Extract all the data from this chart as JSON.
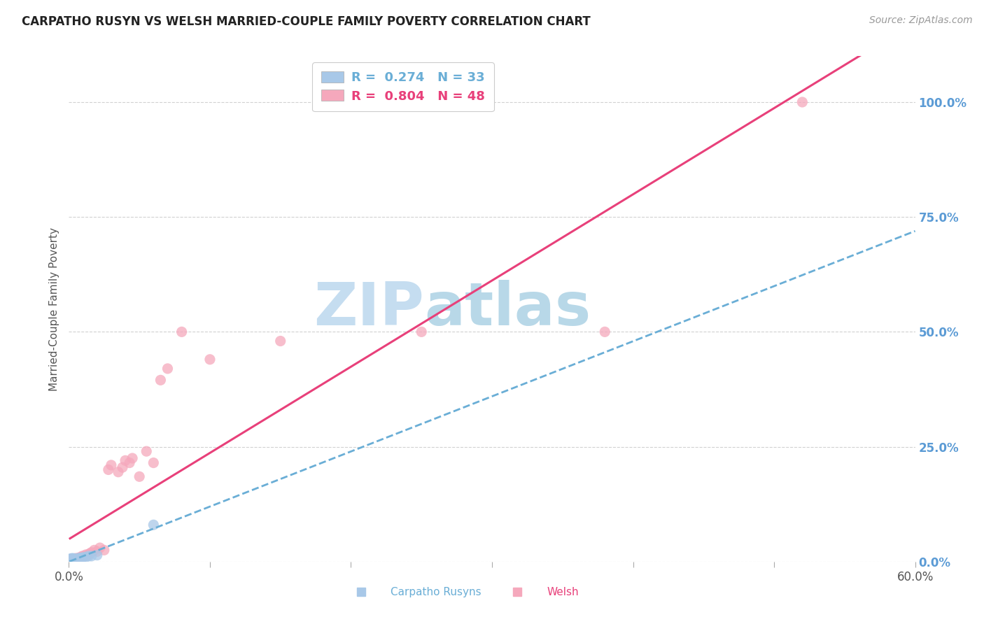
{
  "title": "CARPATHO RUSYN VS WELSH MARRIED-COUPLE FAMILY POVERTY CORRELATION CHART",
  "source": "Source: ZipAtlas.com",
  "ylabel": "Married-Couple Family Poverty",
  "r_carpatho": 0.274,
  "n_carpatho": 33,
  "r_welsh": 0.804,
  "n_welsh": 48,
  "x_min": 0.0,
  "x_max": 0.6,
  "y_min": 0.0,
  "y_max": 1.1,
  "y_ticks": [
    0.0,
    0.25,
    0.5,
    0.75,
    1.0
  ],
  "y_tick_labels": [
    "0.0%",
    "25.0%",
    "50.0%",
    "75.0%",
    "100.0%"
  ],
  "x_ticks": [
    0.0,
    0.1,
    0.2,
    0.3,
    0.4,
    0.5,
    0.6
  ],
  "x_tick_labels": [
    "0.0%",
    "",
    "",
    "",
    "",
    "",
    "60.0%"
  ],
  "color_carpatho": "#a8c8e8",
  "color_welsh": "#f5a8bc",
  "color_carpatho_line": "#6aaed6",
  "color_welsh_line": "#e8407a",
  "color_right_labels": "#5b9bd5",
  "watermark_zip_color": "#c8dff0",
  "watermark_atlas_color": "#c8dff0",
  "background_color": "#ffffff",
  "carpatho_x": [
    0.0005,
    0.0005,
    0.001,
    0.001,
    0.001,
    0.0015,
    0.0015,
    0.002,
    0.002,
    0.002,
    0.0025,
    0.0025,
    0.003,
    0.003,
    0.003,
    0.0035,
    0.0035,
    0.004,
    0.004,
    0.0045,
    0.005,
    0.0055,
    0.006,
    0.0065,
    0.007,
    0.008,
    0.009,
    0.01,
    0.012,
    0.014,
    0.016,
    0.02,
    0.06
  ],
  "carpatho_y": [
    0.002,
    0.004,
    0.002,
    0.004,
    0.006,
    0.003,
    0.005,
    0.002,
    0.005,
    0.007,
    0.003,
    0.006,
    0.002,
    0.004,
    0.007,
    0.004,
    0.006,
    0.003,
    0.006,
    0.005,
    0.004,
    0.006,
    0.005,
    0.007,
    0.006,
    0.008,
    0.007,
    0.009,
    0.01,
    0.012,
    0.012,
    0.014,
    0.08
  ],
  "welsh_x": [
    0.0008,
    0.001,
    0.0012,
    0.0015,
    0.0018,
    0.002,
    0.0025,
    0.003,
    0.0035,
    0.004,
    0.0045,
    0.005,
    0.006,
    0.0065,
    0.007,
    0.008,
    0.0085,
    0.009,
    0.0095,
    0.01,
    0.011,
    0.012,
    0.013,
    0.014,
    0.015,
    0.016,
    0.018,
    0.02,
    0.022,
    0.025,
    0.028,
    0.03,
    0.035,
    0.038,
    0.04,
    0.043,
    0.045,
    0.05,
    0.055,
    0.06,
    0.065,
    0.07,
    0.08,
    0.1,
    0.15,
    0.25,
    0.38,
    0.52
  ],
  "welsh_y": [
    0.003,
    0.004,
    0.003,
    0.005,
    0.004,
    0.006,
    0.005,
    0.004,
    0.006,
    0.005,
    0.007,
    0.006,
    0.005,
    0.008,
    0.007,
    0.006,
    0.01,
    0.008,
    0.012,
    0.01,
    0.012,
    0.015,
    0.013,
    0.016,
    0.018,
    0.02,
    0.025,
    0.022,
    0.03,
    0.025,
    0.2,
    0.21,
    0.195,
    0.205,
    0.22,
    0.215,
    0.225,
    0.185,
    0.24,
    0.215,
    0.395,
    0.42,
    0.5,
    0.44,
    0.48,
    0.5,
    0.5,
    1.0
  ]
}
